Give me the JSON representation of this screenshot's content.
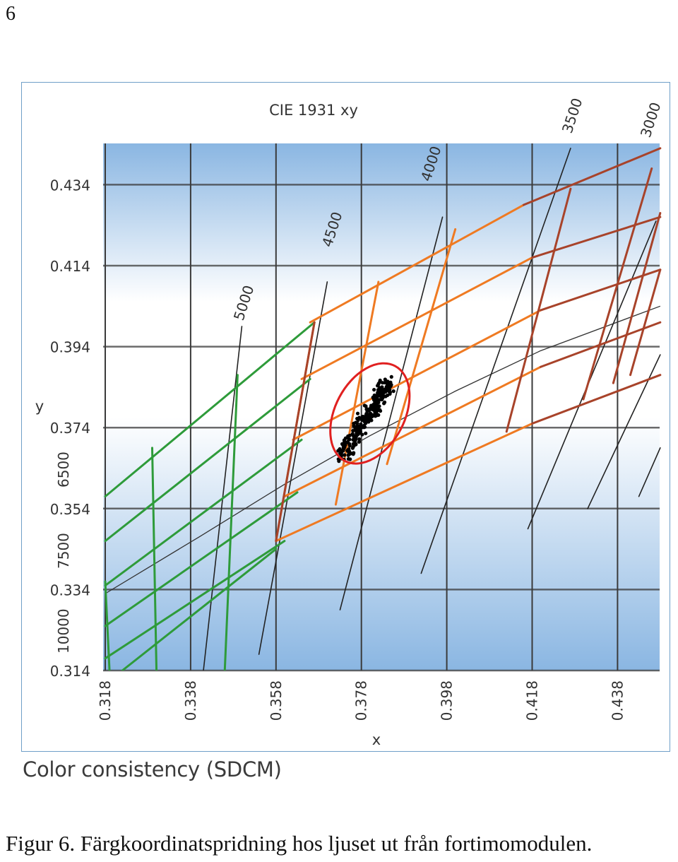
{
  "page_number": "6",
  "subtitle": "Color consistency (SDCM)",
  "figure_caption": "Figur 6. Färgkoordinatspridning hos ljuset ut från fortimomodulen.",
  "colors": {
    "frame": "#6f9fc8",
    "plot_blue": "#8ab6e2",
    "grid": "#3a3a3a",
    "green_ellipses": "#2e9b3a",
    "orange_ellipses": "#ef7a22",
    "brown_ellipses": "#a8432a",
    "isotherm": "#222222",
    "measured_ellipse": "#e02020",
    "measurements": "#000000"
  },
  "chart_data": {
    "type": "scatter",
    "title": "CIE 1931 xy",
    "xlabel": "x",
    "ylabel": "y",
    "xlim": [
      0.318,
      0.448
    ],
    "ylim": [
      0.314,
      0.443
    ],
    "x_ticks": [
      "0.318",
      "0.338",
      "0.358",
      "0.378",
      "0.398",
      "0.418",
      "0.438"
    ],
    "y_ticks": [
      "0.314",
      "0.334",
      "0.354",
      "0.374",
      "0.394",
      "0.414",
      "0.434"
    ],
    "cct_labels_top": [
      "5000",
      "4500",
      "4000",
      "3500",
      "3000"
    ],
    "cct_labels_left": [
      "6500",
      "7500",
      "10000"
    ],
    "grid": true,
    "measurement_cluster": {
      "center": [
        0.3805,
        0.3775
      ],
      "spread_x": [
        0.3735,
        0.3845
      ],
      "spread_y": [
        0.367,
        0.3855
      ]
    },
    "measured_ellipse": {
      "center": [
        0.38,
        0.3775
      ],
      "extent_x": [
        0.371,
        0.3895
      ],
      "extent_y": [
        0.366,
        0.3895
      ]
    }
  }
}
